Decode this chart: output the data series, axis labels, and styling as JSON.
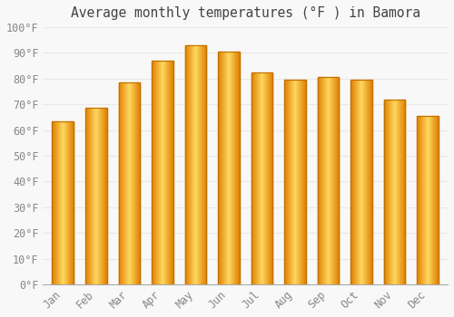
{
  "title": "Average monthly temperatures (°F ) in Bamora",
  "months": [
    "Jan",
    "Feb",
    "Mar",
    "Apr",
    "May",
    "Jun",
    "Jul",
    "Aug",
    "Sep",
    "Oct",
    "Nov",
    "Dec"
  ],
  "values": [
    63.5,
    68.5,
    78.5,
    87.0,
    93.0,
    90.5,
    82.5,
    79.5,
    80.5,
    79.5,
    72.0,
    65.5
  ],
  "bar_color_dark": "#E08000",
  "bar_color_mid": "#FFC020",
  "bar_color_light": "#FFD860",
  "ylim": [
    0,
    100
  ],
  "ytick_step": 10,
  "background_color": "#F8F8F8",
  "grid_color": "#E8E8E8",
  "font_family": "monospace",
  "title_fontsize": 10.5,
  "tick_fontsize": 8.5
}
